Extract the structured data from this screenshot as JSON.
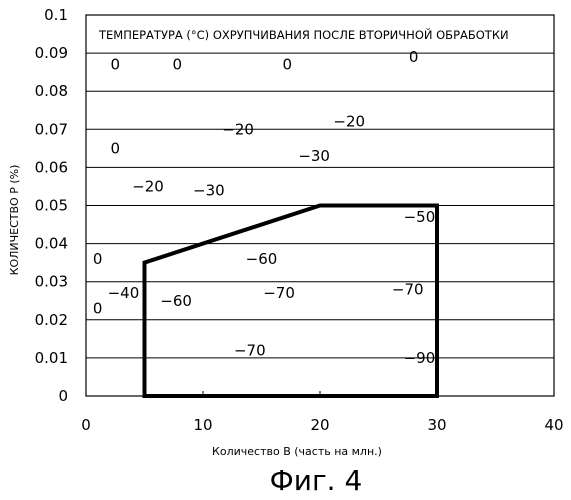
{
  "chart_data": {
    "type": "scatter",
    "title": "ТЕМПЕРАТУРА (°C) ОХРУПЧИВАНИЯ ПОСЛЕ ВТОРИЧНОЙ ОБРАБОТКИ",
    "xlabel": "Количество В (часть на млн.)",
    "ylabel": "КОЛИЧЕСТВО Р (%)",
    "caption": "Фиг. 4",
    "xlim": [
      0,
      40
    ],
    "ylim": [
      0,
      0.1
    ],
    "x_ticks": [
      "0",
      "10",
      "20",
      "30",
      "40"
    ],
    "y_ticks": [
      "0",
      "0.01",
      "0.02",
      "0.03",
      "0.04",
      "0.05",
      "0.06",
      "0.07",
      "0.08",
      "0.09",
      "0.1"
    ],
    "grid": "horizontal",
    "points": [
      {
        "x": 2.5,
        "y": 0.087,
        "label": "0"
      },
      {
        "x": 7.8,
        "y": 0.087,
        "label": "0"
      },
      {
        "x": 17.2,
        "y": 0.087,
        "label": "0"
      },
      {
        "x": 28.0,
        "y": 0.089,
        "label": "0"
      },
      {
        "x": 13.0,
        "y": 0.07,
        "label": "−20"
      },
      {
        "x": 22.5,
        "y": 0.072,
        "label": "−20"
      },
      {
        "x": 19.5,
        "y": 0.063,
        "label": "−30"
      },
      {
        "x": 2.5,
        "y": 0.065,
        "label": "0"
      },
      {
        "x": 5.3,
        "y": 0.055,
        "label": "−20"
      },
      {
        "x": 10.5,
        "y": 0.054,
        "label": "−30"
      },
      {
        "x": 28.5,
        "y": 0.047,
        "label": "−50"
      },
      {
        "x": 1.0,
        "y": 0.036,
        "label": "0"
      },
      {
        "x": 15.0,
        "y": 0.036,
        "label": "−60"
      },
      {
        "x": 3.2,
        "y": 0.027,
        "label": "−40"
      },
      {
        "x": 7.7,
        "y": 0.025,
        "label": "−60"
      },
      {
        "x": 16.5,
        "y": 0.027,
        "label": "−70"
      },
      {
        "x": 27.5,
        "y": 0.028,
        "label": "−70"
      },
      {
        "x": 1.0,
        "y": 0.023,
        "label": "0"
      },
      {
        "x": 14.0,
        "y": 0.012,
        "label": "−70"
      },
      {
        "x": 28.5,
        "y": 0.01,
        "label": "−90"
      }
    ],
    "region": [
      [
        5,
        0
      ],
      [
        5,
        0.035
      ],
      [
        20,
        0.05
      ],
      [
        30,
        0.05
      ],
      [
        30,
        0
      ]
    ]
  }
}
